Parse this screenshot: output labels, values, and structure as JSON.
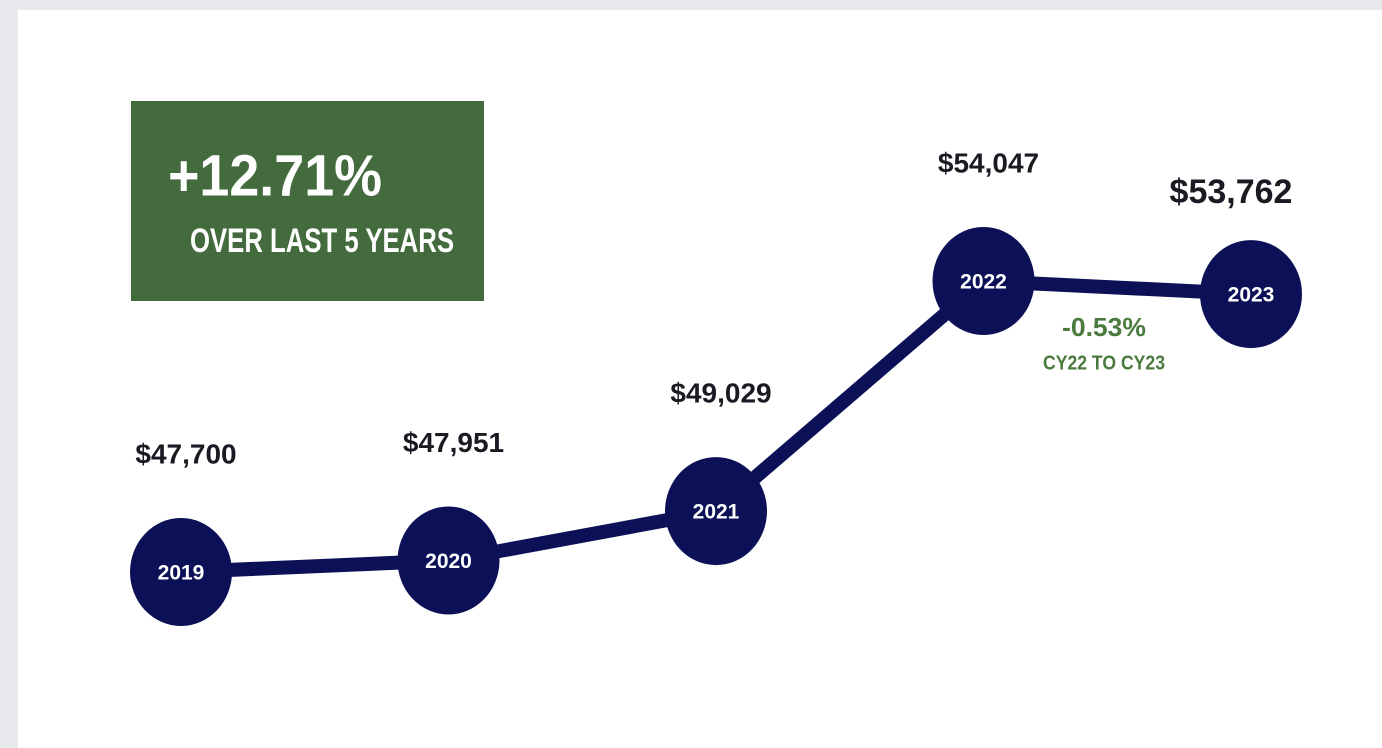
{
  "chart_data": {
    "type": "line",
    "categories": [
      "2019",
      "2020",
      "2021",
      "2022",
      "2023"
    ],
    "values": [
      47700,
      47951,
      49029,
      54047,
      53762
    ],
    "value_labels": [
      "$47,700",
      "$47,951",
      "$49,029",
      "$54,047",
      "$53,762"
    ],
    "color": "#0c1157",
    "annotations": {
      "headline": "+12.71%",
      "headline_sub": "OVER LAST 5 YEARS",
      "change": "-0.53%",
      "change_sub": "CY22 TO CY23"
    }
  }
}
